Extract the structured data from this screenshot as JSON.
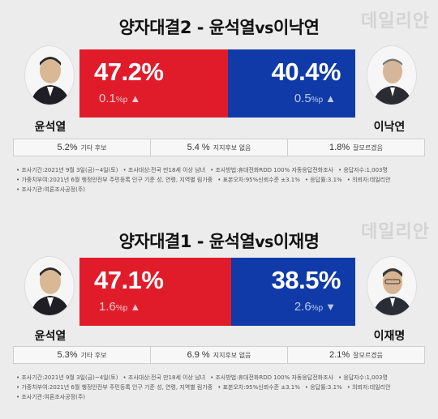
{
  "watermark": "데일리안",
  "chart_data": [
    {
      "type": "bar",
      "title_main": "양자대결2 - 윤석열",
      "title_vs": "vs",
      "title_tail": "이낙연",
      "candidates": [
        {
          "name": "윤석열",
          "value": 47.2,
          "value_label": "47.2%",
          "change": "0.1",
          "change_unit": "%p",
          "direction": "up",
          "color": "#e11c2a"
        },
        {
          "name": "이낙연",
          "value": 40.4,
          "value_label": "40.4%",
          "change": "0.5",
          "change_unit": "%p",
          "direction": "up",
          "color": "#0f3aa8"
        }
      ],
      "others": [
        {
          "value": "5.2%",
          "label": "기타 후보"
        },
        {
          "value": "5.4 %",
          "label": "지지후보 없음"
        },
        {
          "value": "1.8%",
          "label": "잘모르겠음"
        }
      ],
      "notes": [
        [
          "• 조사기간:2021년 9월 3일(금)~4일(토)",
          "• 조사대상:전국 만18세 이상 남녀",
          "• 조사방법:휴대전화RDD 100% 자동응답전화조사",
          "• 응답자수:1,003명"
        ],
        [
          "• 가중치부여:2021년 6월 행정안전부 주민등록 인구 기준 성, 연령, 지역별 림가중",
          "• 표본오차:95%신뢰수준 ±3.1%",
          "• 응답률:3.1%",
          "• 의뢰자:데일리안"
        ],
        [
          "• 조사기관:여론조사공정(주)"
        ]
      ]
    },
    {
      "type": "bar",
      "title_main": "양자대결1 - 윤석열",
      "title_vs": "vs",
      "title_tail": "이재명",
      "candidates": [
        {
          "name": "윤석열",
          "value": 47.1,
          "value_label": "47.1%",
          "change": "1.6",
          "change_unit": "%p",
          "direction": "up",
          "color": "#e11c2a"
        },
        {
          "name": "이재명",
          "value": 38.5,
          "value_label": "38.5%",
          "change": "2.6",
          "change_unit": "%p",
          "direction": "down",
          "color": "#0f3aa8"
        }
      ],
      "others": [
        {
          "value": "5.3%",
          "label": "기타 후보"
        },
        {
          "value": "6.9 %",
          "label": "지지후보 없음"
        },
        {
          "value": "2.1%",
          "label": "잘모르겠음"
        }
      ],
      "notes": [
        [
          "• 조사기간:2021년 9월 3일(금)~4일(토)",
          "• 조사대상:전국 만18세 이상 남녀",
          "• 조사방법:휴대전화RDD 100% 자동응답전화조사",
          "• 응답자수:1,003명"
        ],
        [
          "• 가중치부여:2021년 6월 행정안전부 주민등록 인구 기준 성, 연령, 지역별 림가중",
          "• 표본오차:95%신뢰수준 ±3.1%",
          "• 응답률:3.1%",
          "• 의뢰자:데일리안"
        ],
        [
          "• 조사기관:여론조사공정(주)"
        ]
      ]
    }
  ]
}
